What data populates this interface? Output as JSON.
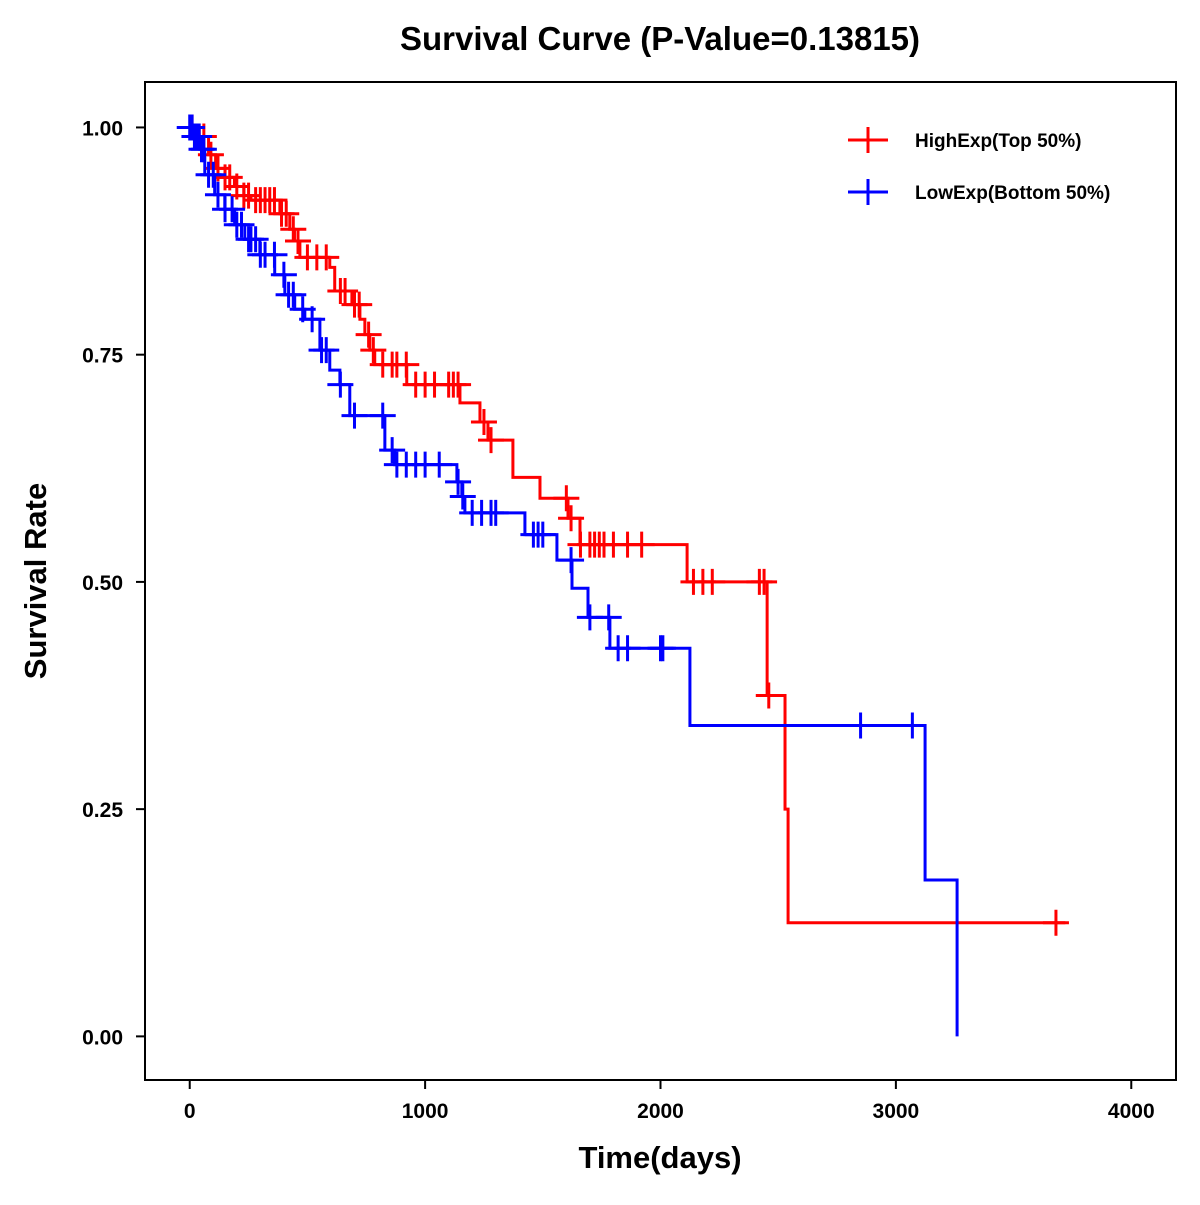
{
  "chart_data": {
    "type": "line",
    "subtype": "kaplan-meier step",
    "title": "Survival Curve (P-Value=0.13815)",
    "xlabel": "Time(days)",
    "ylabel": "Survival Rate",
    "xlim": [
      -190,
      4190
    ],
    "ylim": [
      -0.048,
      1.05
    ],
    "xticks": [
      0,
      1000,
      2000,
      3000,
      4000
    ],
    "xtick_labels": [
      "0",
      "1000",
      "2000",
      "3000",
      "4000"
    ],
    "yticks": [
      0,
      0.25,
      0.5,
      0.75,
      1.0
    ],
    "ytick_labels": [
      "0.00",
      "0.25",
      "0.50",
      "0.75",
      "1.00"
    ],
    "grid": false,
    "legend_position": "top-right",
    "series": [
      {
        "name": "HighExp(Top 50%)",
        "color": "#FF0000",
        "steps": [
          [
            0,
            1.0
          ],
          [
            40,
            0.99
          ],
          [
            80,
            0.97
          ],
          [
            110,
            0.955
          ],
          [
            150,
            0.945
          ],
          [
            190,
            0.935
          ],
          [
            230,
            0.925
          ],
          [
            260,
            0.92
          ],
          [
            383,
            0.905
          ],
          [
            425,
            0.888
          ],
          [
            445,
            0.875
          ],
          [
            468,
            0.857
          ],
          [
            595,
            0.846
          ],
          [
            616,
            0.82
          ],
          [
            689,
            0.805
          ],
          [
            723,
            0.789
          ],
          [
            744,
            0.772
          ],
          [
            765,
            0.755
          ],
          [
            786,
            0.739
          ],
          [
            922,
            0.717
          ],
          [
            1148,
            0.697
          ],
          [
            1233,
            0.676
          ],
          [
            1267,
            0.656
          ],
          [
            1373,
            0.615
          ],
          [
            1488,
            0.592
          ],
          [
            1607,
            0.57
          ],
          [
            1658,
            0.541
          ],
          [
            2113,
            0.5
          ],
          [
            2453,
            0.375
          ],
          [
            2529,
            0.25
          ],
          [
            2542,
            0.125
          ]
        ],
        "end_time": 3720,
        "censored": [
          10,
          40,
          60,
          90,
          120,
          150,
          170,
          200,
          230,
          250,
          280,
          300,
          320,
          340,
          360,
          390,
          410,
          440,
          460,
          500,
          540,
          580,
          640,
          660,
          700,
          720,
          760,
          780,
          820,
          860,
          880,
          920,
          960,
          1000,
          1040,
          1100,
          1120,
          1140,
          1250,
          1280,
          1600,
          1620,
          1660,
          1700,
          1720,
          1740,
          1760,
          1800,
          1860,
          1920,
          2140,
          2180,
          2220,
          2420,
          2440,
          2460,
          3680
        ]
      },
      {
        "name": "LowExp(Bottom 50%)",
        "color": "#0000FF",
        "steps": [
          [
            0,
            1.0
          ],
          [
            20,
            0.99
          ],
          [
            43,
            0.976
          ],
          [
            64,
            0.948
          ],
          [
            106,
            0.926
          ],
          [
            149,
            0.91
          ],
          [
            191,
            0.893
          ],
          [
            234,
            0.877
          ],
          [
            298,
            0.86
          ],
          [
            361,
            0.838
          ],
          [
            404,
            0.816
          ],
          [
            446,
            0.8
          ],
          [
            489,
            0.789
          ],
          [
            553,
            0.755
          ],
          [
            595,
            0.733
          ],
          [
            638,
            0.717
          ],
          [
            680,
            0.683
          ],
          [
            829,
            0.645
          ],
          [
            871,
            0.629
          ],
          [
            1135,
            0.61
          ],
          [
            1156,
            0.594
          ],
          [
            1169,
            0.576
          ],
          [
            1424,
            0.552
          ],
          [
            1560,
            0.524
          ],
          [
            1624,
            0.493
          ],
          [
            1692,
            0.461
          ],
          [
            1785,
            0.427
          ],
          [
            2125,
            0.342
          ],
          [
            3124,
            0.172
          ],
          [
            3260,
            0.0
          ]
        ],
        "end_time": 3260,
        "censored": [
          0,
          5,
          10,
          20,
          30,
          40,
          50,
          60,
          80,
          100,
          120,
          150,
          180,
          200,
          220,
          250,
          260,
          280,
          300,
          320,
          360,
          400,
          420,
          440,
          480,
          520,
          560,
          580,
          640,
          700,
          820,
          860,
          880,
          920,
          960,
          1000,
          1060,
          1140,
          1160,
          1200,
          1240,
          1280,
          1300,
          1460,
          1480,
          1500,
          1620,
          1700,
          1780,
          1820,
          1860,
          2000,
          2010,
          2850,
          3070
        ]
      }
    ]
  }
}
